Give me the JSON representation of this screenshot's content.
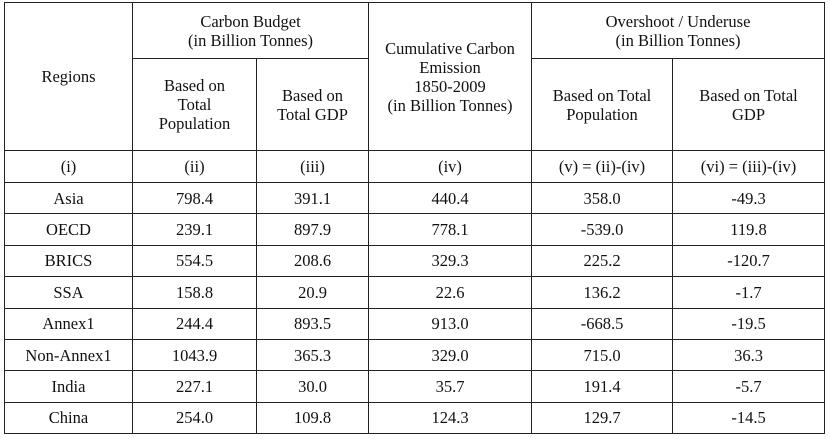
{
  "table": {
    "header": {
      "regions": "Regions",
      "carbon_budget": "Carbon Budget\n(in Billion Tonnes)",
      "based_population": "Based on\nTotal\nPopulation",
      "based_gdp": "Based on\nTotal GDP",
      "cumulative": "Cumulative Carbon\nEmission\n1850-2009\n(in Billion Tonnes)",
      "overshoot": "Overshoot / Underuse\n(in Billion Tonnes)",
      "over_population": "Based on Total\nPopulation",
      "over_gdp": "Based on Total\nGDP"
    },
    "index_row": [
      "(i)",
      "(ii)",
      "(iii)",
      "(iv)",
      "(v) = (ii)-(iv)",
      "(vi) = (iii)-(iv)"
    ],
    "rows": [
      [
        "Asia",
        "798.4",
        "391.1",
        "440.4",
        "358.0",
        "-49.3"
      ],
      [
        "OECD",
        "239.1",
        "897.9",
        "778.1",
        "-539.0",
        "119.8"
      ],
      [
        "BRICS",
        "554.5",
        "208.6",
        "329.3",
        "225.2",
        "-120.7"
      ],
      [
        "SSA",
        "158.8",
        "20.9",
        "22.6",
        "136.2",
        "-1.7"
      ],
      [
        "Annex1",
        "244.4",
        "893.5",
        "913.0",
        "-668.5",
        "-19.5"
      ],
      [
        "Non-Annex1",
        "1043.9",
        "365.3",
        "329.0",
        "715.0",
        "36.3"
      ],
      [
        "India",
        "227.1",
        "30.0",
        "35.7",
        "191.4",
        "-5.7"
      ],
      [
        "China",
        "254.0",
        "109.8",
        "124.3",
        "129.7",
        "-14.5"
      ]
    ]
  }
}
